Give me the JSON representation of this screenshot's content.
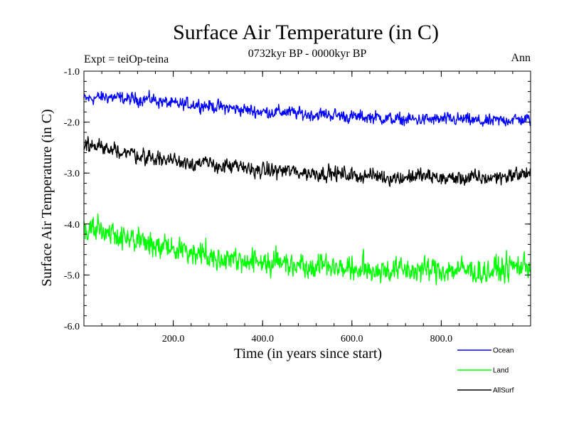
{
  "chart_data": {
    "type": "line",
    "title": "Surface Air Temperature (in C)",
    "subtitle": "0732kyr BP - 0000kyr BP",
    "experiment_label": "Expt = teiOp-teina",
    "period_label": "Ann",
    "xlabel": "Time (in years since start)",
    "ylabel": "Surface Air Temperature (in C)",
    "xlim": [
      0,
      1000
    ],
    "ylim": [
      -6.0,
      -1.0
    ],
    "x_ticks": [
      200,
      400,
      600,
      800
    ],
    "x_tick_labels": [
      "200.0",
      "400.0",
      "600.0",
      "800.0"
    ],
    "y_ticks": [
      -1,
      -2,
      -3,
      -4,
      -5,
      -6
    ],
    "y_tick_labels": [
      "-1.0",
      "-2.0",
      "-3.0",
      "-4.0",
      "-5.0",
      "-6.0"
    ],
    "grid": false,
    "legend_position": "bottom-right",
    "series": [
      {
        "name": "Ocean",
        "color": "#0000ff",
        "x": [
          0,
          50,
          100,
          150,
          200,
          250,
          300,
          350,
          400,
          450,
          500,
          550,
          600,
          650,
          700,
          750,
          800,
          850,
          900,
          950,
          1000
        ],
        "values": [
          -1.55,
          -1.5,
          -1.55,
          -1.55,
          -1.65,
          -1.65,
          -1.7,
          -1.75,
          -1.8,
          -1.8,
          -1.85,
          -1.85,
          -1.9,
          -1.9,
          -1.95,
          -1.95,
          -1.95,
          -1.95,
          -2.0,
          -1.95,
          -1.95
        ]
      },
      {
        "name": "Land",
        "color": "#00ff00",
        "x": [
          0,
          50,
          100,
          150,
          200,
          250,
          300,
          350,
          400,
          450,
          500,
          550,
          600,
          650,
          700,
          750,
          800,
          850,
          900,
          950,
          1000
        ],
        "values": [
          -4.1,
          -4.1,
          -4.3,
          -4.4,
          -4.5,
          -4.55,
          -4.65,
          -4.7,
          -4.75,
          -4.75,
          -4.8,
          -4.8,
          -4.9,
          -4.9,
          -4.9,
          -4.9,
          -4.9,
          -4.9,
          -4.95,
          -4.85,
          -4.8
        ]
      },
      {
        "name": "AllSurf",
        "color": "#000000",
        "x": [
          0,
          50,
          100,
          150,
          200,
          250,
          300,
          350,
          400,
          450,
          500,
          550,
          600,
          650,
          700,
          750,
          800,
          850,
          900,
          950,
          1000
        ],
        "values": [
          -2.45,
          -2.5,
          -2.6,
          -2.7,
          -2.75,
          -2.8,
          -2.85,
          -2.9,
          -2.95,
          -2.95,
          -3.0,
          -3.0,
          -3.05,
          -3.05,
          -3.1,
          -3.05,
          -3.1,
          -3.1,
          -3.1,
          -3.05,
          -3.0
        ]
      }
    ]
  }
}
